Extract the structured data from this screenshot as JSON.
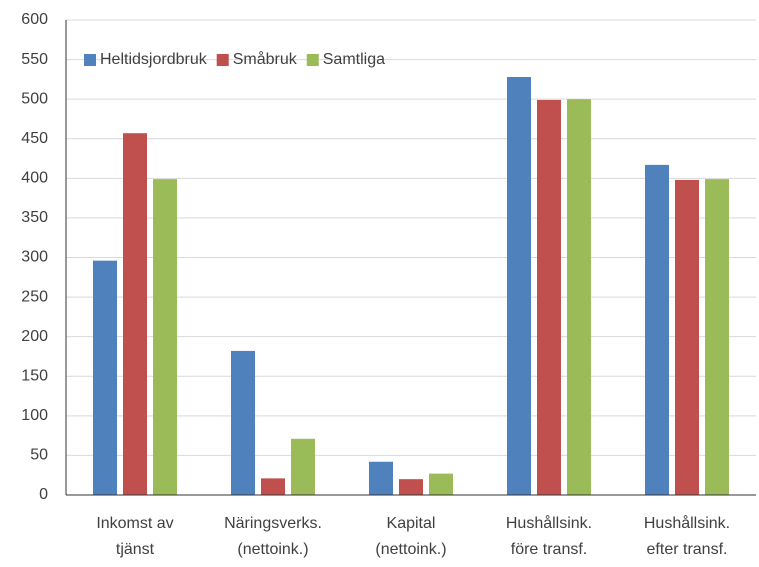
{
  "chart_data": {
    "type": "bar",
    "categories": [
      [
        "Inkomst av",
        "tjänst"
      ],
      [
        "Näringsverks.",
        "(nettoink.)"
      ],
      [
        "Kapital",
        "(nettoink.)"
      ],
      [
        "Hushållsink.",
        "före transf."
      ],
      [
        "Hushållsink.",
        "efter transf."
      ]
    ],
    "series": [
      {
        "name": "Heltidsjordbruk",
        "color": "#4f81bd",
        "values": [
          296,
          182,
          42,
          528,
          417
        ]
      },
      {
        "name": "Småbruk",
        "color": "#c0504d",
        "values": [
          457,
          21,
          20,
          499,
          398
        ]
      },
      {
        "name": "Samtliga",
        "color": "#9bbb59",
        "values": [
          399,
          71,
          27,
          500,
          399
        ]
      }
    ],
    "ylim": [
      0,
      600
    ],
    "yticks": [
      0,
      50,
      100,
      150,
      200,
      250,
      300,
      350,
      400,
      450,
      500,
      550,
      600
    ],
    "grid": true,
    "legend": "top-left"
  }
}
